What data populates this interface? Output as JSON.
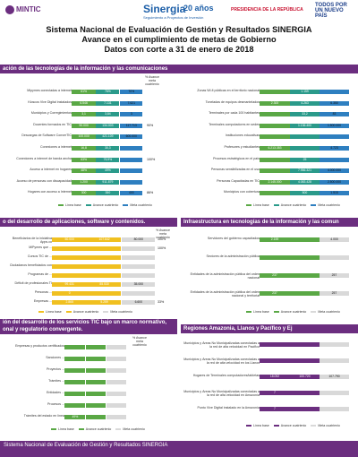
{
  "header": {
    "mintic": "MINTIC",
    "sinergia": "Sinergia",
    "sinergia_sub": "Seguimiento a Proyectos de Inversión",
    "anos": "20 años",
    "presidencia": "PRESIDENCIA DE LA REPÚBLICA",
    "todos": "TODOS POR UN NUEVO PAÍS"
  },
  "title": {
    "line1": "Sistema Nacional de Evaluación de Gestión y Resultados SINERGIA",
    "line2": "Avance en el cumplimiento de metas de Gobierno",
    "line3": "Datos con corte a 31 de enero de 2018"
  },
  "sections": {
    "s1": "ación de las tecnologías de la información y las comunicaciones",
    "s2": "o del desarrollo de aplicaciones, software y contenidos.",
    "s3": "Infraestructura en tecnologías de la información y las comun",
    "s4": "ión del desarrollo de los servicios TIC bajo un marco normativo,",
    "s4b": "onal y regulatorio convergente.",
    "s5": "Regiones Amazonia, Llanos y Pacífico y Ej"
  },
  "legend": {
    "linea_base": "Línea base",
    "avance": "Avance cuatrienio",
    "meta": "Meta cuatrienio"
  },
  "col_head": "% Avance meta cuatrienio",
  "colors": {
    "purple": "#6b2e7f",
    "green": "#5aa845",
    "teal": "#2a9a8a",
    "blue": "#2e7fc0",
    "yellow": "#f0c020",
    "gray": "#d9d9d9"
  },
  "chart_data": [
    {
      "type": "bar",
      "panel": "p1",
      "categories": [
        "Mipymes conectadas a internet",
        "Kioscos Vive Digital instalados",
        "Municipios y Corregimientos",
        "Docentes formados en TIC",
        "Descargas de Software ConverTIC",
        "Conexiones a internet",
        "Conexiones a internet de banda ancha",
        "Acceso a internet en hogares",
        "Acceso de personas con discapacidad",
        "Hogares con acceso a Internet"
      ],
      "bar_labels": [
        "61%",
        "6.546",
        "3,1",
        "90.000",
        "100.000",
        "16,8",
        "63%",
        "48%",
        "1.200",
        "300"
      ],
      "mid_labels": [
        "76%",
        "7.131",
        "3,84",
        "134.003",
        "421.109",
        "30,3",
        "75,9%",
        "49%",
        "911.879",
        "350"
      ],
      "end_labels": [
        "70%",
        "7.621",
        "3",
        "117.713",
        "600.000",
        "",
        "",
        "",
        "",
        "400"
      ],
      "pct": [
        "",
        "",
        "",
        "90%",
        "",
        "",
        "100%",
        "",
        "",
        "86%"
      ]
    },
    {
      "type": "bar",
      "panel": "p2",
      "categories": [
        "Zonas Wi-fi públicas en el territorio nacional",
        "Toneladas de equipos desmantelados",
        "Terminales por cada 100 habitantes",
        "Terminales computadores en sedes",
        "Instituciones educativas",
        "Profesores y estudiantes",
        "Procesos estratégicos en el país",
        "Personas sensibilizadas en el uso",
        "Personas Capacitadas en TIC",
        "Municipios con cobertura"
      ],
      "bar_labels": [
        "",
        "2.300",
        "",
        "",
        "",
        "6.213.353",
        "",
        "",
        "2.145.000",
        ""
      ],
      "mid_labels": [
        "1.159",
        "4.263",
        "33,2",
        "1.136.400",
        "",
        "",
        "25",
        "7.956.321",
        "4.083.428",
        "500"
      ],
      "end_labels": [
        "",
        "6.350",
        "83",
        "1.500.000",
        "",
        "4.723",
        "",
        "4.000.000",
        "2.500.000",
        "1.515"
      ],
      "pct": [
        "",
        "",
        "",
        "",
        "",
        "",
        "",
        "",
        "",
        ""
      ]
    },
    {
      "type": "bar",
      "panel": "p3",
      "categories": [
        "Beneficiarios de la iniciativa Apps.co",
        "MiPymes que ...",
        "Cursos TIC de ...",
        "Ciudadanos beneficiados con",
        "Programas de ...",
        "Déficit de profesionales TI",
        "Personas ...",
        "Empresas ..."
      ],
      "bar_labels": [
        "50.000",
        "",
        "",
        "",
        "",
        "99.431",
        "0",
        "2.865"
      ],
      "mid_labels": [
        "107.642",
        "",
        "",
        "",
        "",
        "85.530",
        "",
        "5.259"
      ],
      "end_labels": [
        "80.000",
        "",
        "",
        "",
        "",
        "35.000",
        "",
        "6.600"
      ],
      "pct": [
        "100%",
        "100%",
        "",
        "",
        "",
        "",
        "",
        "33%"
      ]
    },
    {
      "type": "bar",
      "panel": "p4",
      "categories": [
        "Servidores del gobierno capacitados",
        "Sectores de la administración pública",
        "Entidades de la administración pública del orden nacional",
        "Entidades de la administración pública del orden nacional y territorial"
      ],
      "bar_labels": [
        "2.159",
        "",
        "237",
        "237"
      ],
      "mid_labels": [
        "",
        "",
        "",
        ""
      ],
      "end_labels": [
        "4.000",
        "",
        "257",
        "257"
      ],
      "pct": [
        "",
        "",
        "",
        ""
      ]
    },
    {
      "type": "bar",
      "panel": "p5",
      "categories": [
        "Empresas y productos certificados",
        "Sanciones ...",
        "Proyectos ...",
        "Trámites ...",
        "Entidades ...",
        "Procesos ...",
        "Trámites del estado en línea"
      ],
      "bar_labels": [
        "",
        "",
        "",
        "",
        "",
        "",
        "49%"
      ],
      "mid_labels": [
        "",
        "",
        "",
        "",
        "",
        "",
        ""
      ],
      "end_labels": [
        "",
        "",
        "",
        "",
        "",
        "",
        ""
      ],
      "pct": [
        "",
        "",
        "",
        "",
        "",
        "",
        ""
      ]
    },
    {
      "type": "bar",
      "panel": "p6",
      "categories": [
        "Municipios y Áreas No Municipalizadas conectadas a la red de alta velocidad en Pacífico",
        "Municipios y Áreas No Municipalizadas conectadas a la red de alta velocidad en los Llanos",
        "Hogares de Terminales computadores/tabletas",
        "Municipios y Áreas No Municipalizadas conectadas a la red de alta velocidad en Amazonía",
        "Punto Vive Digital instalado en la Amazonía"
      ],
      "bar_labels": [
        "",
        "",
        "18.092",
        "7",
        "7"
      ],
      "mid_labels": [
        "",
        "",
        "100.720",
        "",
        ""
      ],
      "end_labels": [
        "",
        "",
        "107.790",
        "",
        ""
      ],
      "pct": [
        "",
        "",
        "",
        "",
        ""
      ]
    }
  ]
}
